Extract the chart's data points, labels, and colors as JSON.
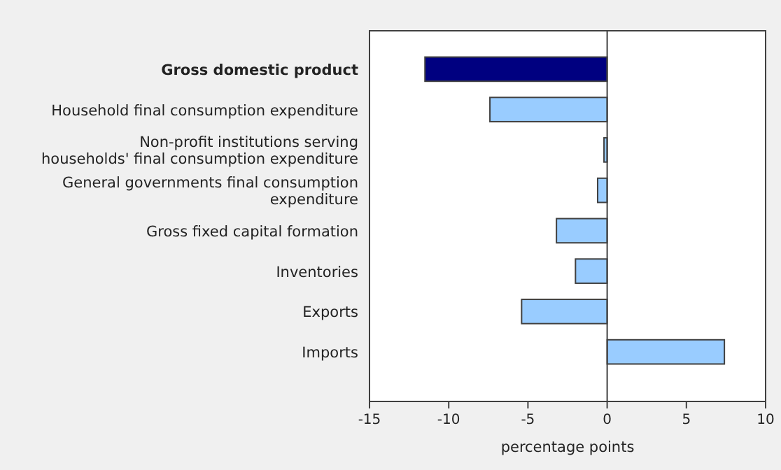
{
  "chart_data": {
    "type": "bar",
    "orientation": "horizontal",
    "xlabel": "percentage points",
    "categories": [
      "Gross domestic product",
      "Household final consumption expenditure",
      "Non-profit institutions serving\nhouseholds' final consumption expenditure",
      "General governments final consumption\nexpenditure",
      "Gross fixed capital formation",
      "Inventories",
      "Exports",
      "Imports"
    ],
    "values": [
      -11.5,
      -7.4,
      -0.2,
      -0.6,
      -3.2,
      -2.0,
      -5.4,
      7.4
    ],
    "colors": [
      "#000080",
      "#99ccff",
      "#99ccff",
      "#99ccff",
      "#99ccff",
      "#99ccff",
      "#99ccff",
      "#99ccff"
    ],
    "xlim": [
      -15,
      10
    ],
    "xticks": [
      -15,
      -10,
      -5,
      0,
      5,
      10
    ]
  }
}
